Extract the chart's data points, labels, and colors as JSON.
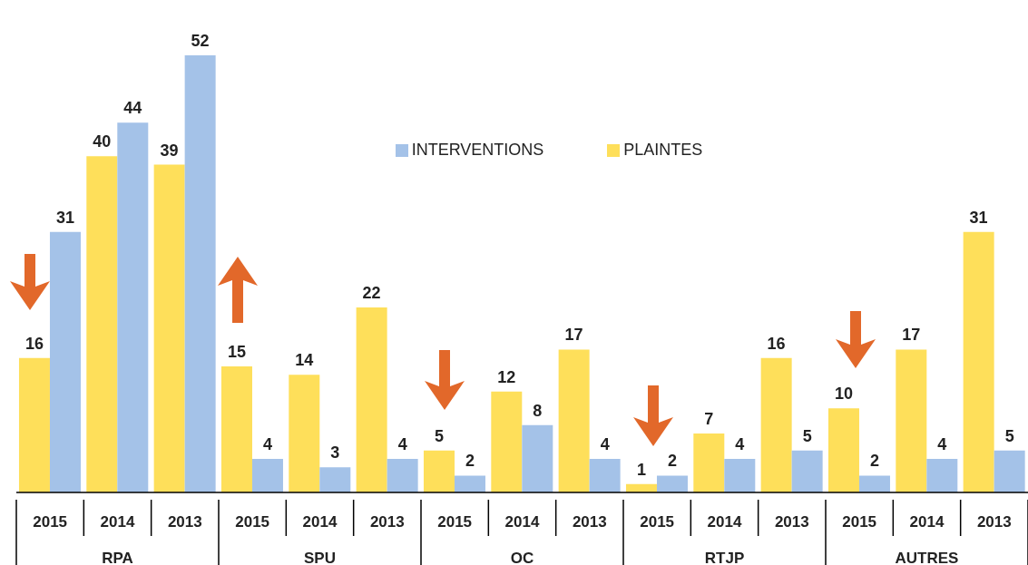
{
  "chart_data": {
    "type": "bar",
    "categories": [
      "2015",
      "2014",
      "2013",
      "2015",
      "2014",
      "2013",
      "2015",
      "2014",
      "2013",
      "2015",
      "2014",
      "2013",
      "2015",
      "2014",
      "2013"
    ],
    "series": [
      {
        "name": "PLAINTES",
        "color": "#fedf5a",
        "values": [
          16,
          40,
          39,
          15,
          14,
          22,
          5,
          12,
          17,
          1,
          7,
          16,
          10,
          17,
          31
        ]
      },
      {
        "name": "INTERVENTIONS",
        "color": "#a4c2e8",
        "values": [
          31,
          44,
          52,
          4,
          3,
          4,
          2,
          8,
          4,
          2,
          4,
          5,
          2,
          4,
          5
        ]
      }
    ],
    "annotations": [
      "RPA",
      "SPU",
      "OC",
      "RTJP",
      "AUTRES"
    ],
    "data_labels": true,
    "legend": "top",
    "grid": false
  }
}
